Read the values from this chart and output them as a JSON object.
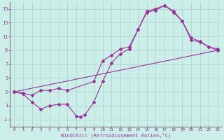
{
  "xlabel": "Windchill (Refroidissement éolien,°C)",
  "background_color": "#cceee8",
  "grid_color": "#aacccc",
  "line_color": "#993399",
  "xlim": [
    -0.5,
    23.5
  ],
  "ylim": [
    -2,
    16
  ],
  "xticks": [
    0,
    1,
    2,
    3,
    4,
    5,
    6,
    7,
    8,
    9,
    10,
    11,
    12,
    13,
    14,
    15,
    16,
    17,
    18,
    19,
    20,
    21,
    22,
    23
  ],
  "yticks": [
    -1,
    1,
    3,
    5,
    7,
    9,
    11,
    13,
    15
  ],
  "line1_x": [
    0,
    1,
    2,
    3,
    4,
    5,
    6,
    7,
    7.5,
    8,
    9,
    10,
    11,
    12,
    13,
    14,
    15,
    16,
    17,
    18,
    19,
    20,
    21,
    22,
    23
  ],
  "line1_y": [
    3.0,
    2.7,
    1.5,
    0.5,
    1.0,
    1.2,
    1.2,
    -0.5,
    -0.65,
    -0.3,
    1.5,
    4.5,
    7.2,
    8.5,
    9.2,
    12.0,
    14.5,
    14.8,
    15.5,
    14.5,
    13.2,
    10.5,
    10.2,
    9.5,
    9.0
  ],
  "line2_x": [
    0,
    23
  ],
  "line2_y": [
    3.0,
    9.0
  ],
  "line3_x": [
    0,
    1,
    2,
    3,
    4,
    5,
    6,
    9,
    10,
    11,
    12,
    13,
    14,
    15,
    16,
    17,
    18,
    19,
    20,
    21,
    22,
    23
  ],
  "line3_y": [
    3.0,
    2.8,
    2.5,
    3.2,
    3.2,
    3.5,
    3.2,
    4.5,
    7.5,
    8.3,
    9.2,
    9.5,
    12.0,
    14.7,
    15.0,
    15.5,
    14.7,
    13.2,
    10.8,
    10.3,
    9.5,
    9.2
  ]
}
